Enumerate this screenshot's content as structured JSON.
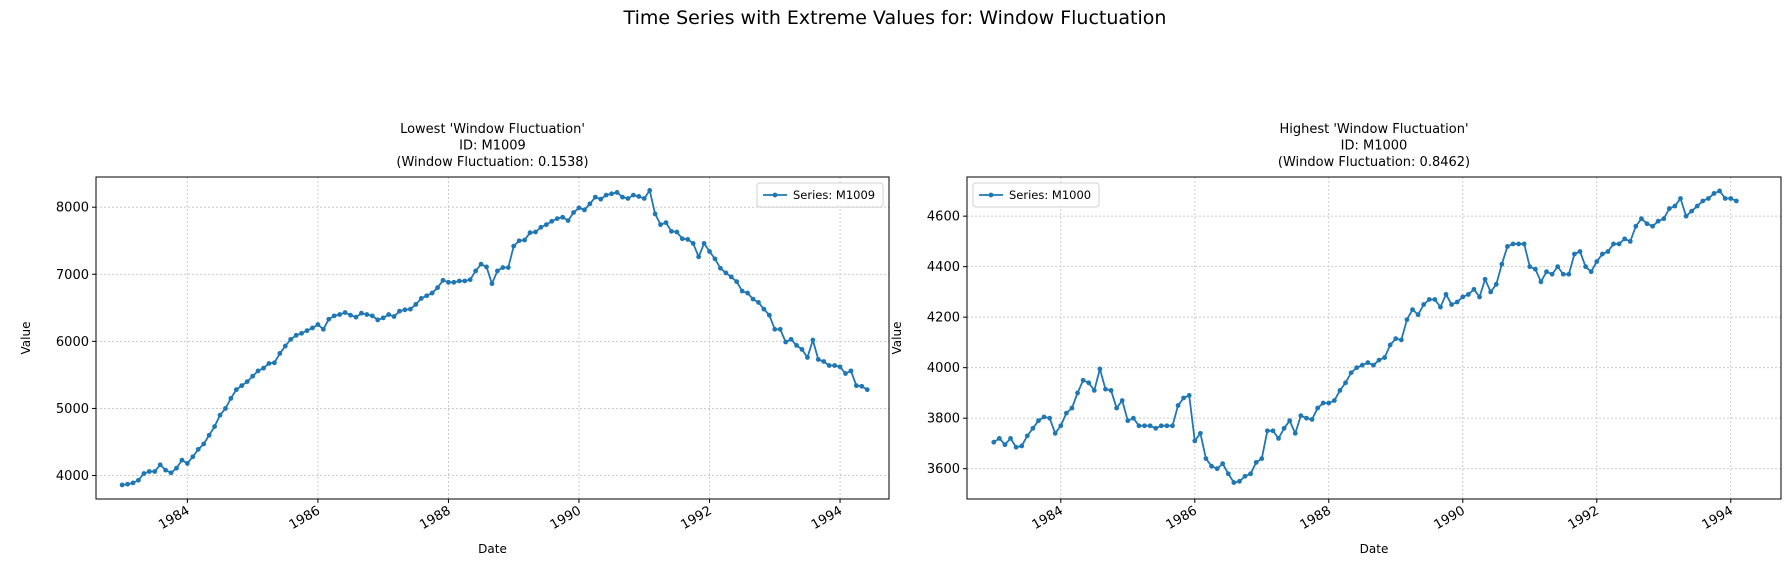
{
  "suptitle": "Time Series with Extreme Values for: Window Fluctuation",
  "colors": {
    "line": "#1f77b4",
    "grid": "#cccccc",
    "axis": "#000000"
  },
  "chart_data": [
    {
      "type": "line",
      "title_lines": [
        "Lowest 'Window Fluctuation'",
        "ID: M1009",
        "(Window Fluctuation: 0.1538)"
      ],
      "xlabel": "Date",
      "ylabel": "Value",
      "x_start": "1983-01",
      "x_frequency": "monthly",
      "xlim": [
        1982.6,
        1994.75
      ],
      "ylim": [
        3650,
        8450
      ],
      "x_tick_values": [
        1984,
        1986,
        1988,
        1990,
        1992,
        1994
      ],
      "x_tick_labels": [
        "1984",
        "1986",
        "1988",
        "1990",
        "1992",
        "1994"
      ],
      "y_ticks": [
        4000,
        5000,
        6000,
        7000,
        8000
      ],
      "grid": true,
      "legend": "top-right",
      "marker": "circle",
      "series": [
        {
          "name": "Series: M1009",
          "values": [
            3860,
            3870,
            3890,
            3930,
            4030,
            4060,
            4060,
            4160,
            4080,
            4040,
            4110,
            4230,
            4180,
            4280,
            4390,
            4470,
            4600,
            4730,
            4900,
            5000,
            5150,
            5280,
            5340,
            5400,
            5480,
            5560,
            5600,
            5670,
            5680,
            5820,
            5930,
            6030,
            6090,
            6120,
            6160,
            6200,
            6250,
            6180,
            6330,
            6380,
            6400,
            6430,
            6390,
            6360,
            6420,
            6400,
            6380,
            6320,
            6350,
            6400,
            6370,
            6450,
            6470,
            6480,
            6550,
            6640,
            6680,
            6720,
            6800,
            6910,
            6880,
            6880,
            6900,
            6900,
            6920,
            7050,
            7150,
            7110,
            6860,
            7050,
            7100,
            7100,
            7420,
            7500,
            7510,
            7620,
            7630,
            7700,
            7740,
            7790,
            7830,
            7850,
            7800,
            7920,
            7990,
            7960,
            8050,
            8150,
            8120,
            8180,
            8200,
            8220,
            8150,
            8130,
            8180,
            8160,
            8130,
            8250,
            7900,
            7740,
            7770,
            7640,
            7630,
            7530,
            7520,
            7460,
            7260,
            7460,
            7340,
            7230,
            7090,
            7020,
            6960,
            6890,
            6750,
            6720,
            6630,
            6580,
            6480,
            6390,
            6180,
            6180,
            5990,
            6030,
            5940,
            5880,
            5760,
            6020,
            5730,
            5700,
            5640,
            5640,
            5620,
            5520,
            5560,
            5340,
            5330,
            5280
          ]
        }
      ]
    },
    {
      "type": "line",
      "title_lines": [
        "Highest 'Window Fluctuation'",
        "ID: M1000",
        "(Window Fluctuation: 0.8462)"
      ],
      "xlabel": "Date",
      "ylabel": "Value",
      "x_start": "1983-01",
      "x_frequency": "monthly",
      "xlim": [
        1982.6,
        1994.75
      ],
      "ylim": [
        3480,
        4755
      ],
      "x_tick_values": [
        1984,
        1986,
        1988,
        1990,
        1992,
        1994
      ],
      "x_tick_labels": [
        "1984",
        "1986",
        "1988",
        "1990",
        "1992",
        "1994"
      ],
      "y_ticks": [
        3600,
        3800,
        4000,
        4200,
        4400,
        4600
      ],
      "grid": true,
      "legend": "top-left",
      "marker": "circle",
      "series": [
        {
          "name": "Series: M1000",
          "values": [
            3705,
            3720,
            3695,
            3720,
            3685,
            3690,
            3730,
            3760,
            3790,
            3805,
            3800,
            3740,
            3770,
            3820,
            3840,
            3900,
            3950,
            3940,
            3910,
            3995,
            3915,
            3910,
            3840,
            3870,
            3790,
            3800,
            3770,
            3770,
            3770,
            3760,
            3770,
            3770,
            3770,
            3850,
            3880,
            3890,
            3710,
            3740,
            3640,
            3610,
            3600,
            3620,
            3580,
            3545,
            3550,
            3570,
            3580,
            3625,
            3640,
            3750,
            3750,
            3720,
            3760,
            3790,
            3740,
            3810,
            3800,
            3795,
            3840,
            3860,
            3860,
            3870,
            3910,
            3940,
            3980,
            4000,
            4010,
            4020,
            4010,
            4030,
            4040,
            4090,
            4115,
            4110,
            4190,
            4230,
            4210,
            4250,
            4270,
            4270,
            4240,
            4290,
            4250,
            4260,
            4280,
            4290,
            4310,
            4280,
            4350,
            4300,
            4330,
            4410,
            4480,
            4490,
            4490,
            4490,
            4400,
            4390,
            4340,
            4380,
            4370,
            4400,
            4370,
            4370,
            4450,
            4460,
            4400,
            4380,
            4420,
            4450,
            4460,
            4490,
            4490,
            4510,
            4500,
            4560,
            4590,
            4570,
            4560,
            4580,
            4590,
            4630,
            4640,
            4670,
            4600,
            4620,
            4640,
            4660,
            4670,
            4690,
            4700,
            4670,
            4670,
            4660
          ]
        }
      ]
    }
  ]
}
